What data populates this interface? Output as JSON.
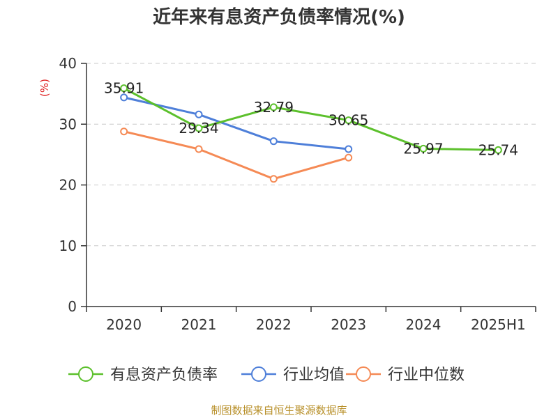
{
  "chart_data": {
    "type": "line",
    "title": "近年来有息资产负债率情况(%)",
    "ylabel": "(%)",
    "categories": [
      "2020",
      "2021",
      "2022",
      "2023",
      "2024",
      "2025H1"
    ],
    "ylim": [
      0,
      40
    ],
    "yticks": [
      "0",
      "10",
      "20",
      "30",
      "40"
    ],
    "grid": true,
    "legend_position": "bottom",
    "series": [
      {
        "name": "有息资产负债率",
        "color": "#5cc02c",
        "values": [
          35.91,
          29.34,
          32.79,
          30.65,
          25.97,
          25.74
        ],
        "labels": [
          "35.91",
          "29.34",
          "32.79",
          "30.65",
          "25.97",
          "25.74"
        ]
      },
      {
        "name": "行业均值",
        "color": "#4e7fd9",
        "values": [
          34.4,
          31.6,
          27.2,
          25.9,
          null,
          null
        ]
      },
      {
        "name": "行业中位数",
        "color": "#f58a55",
        "values": [
          28.8,
          25.9,
          21.0,
          24.5,
          null,
          null
        ]
      }
    ]
  },
  "source": "制图数据来自恒生聚源数据库"
}
